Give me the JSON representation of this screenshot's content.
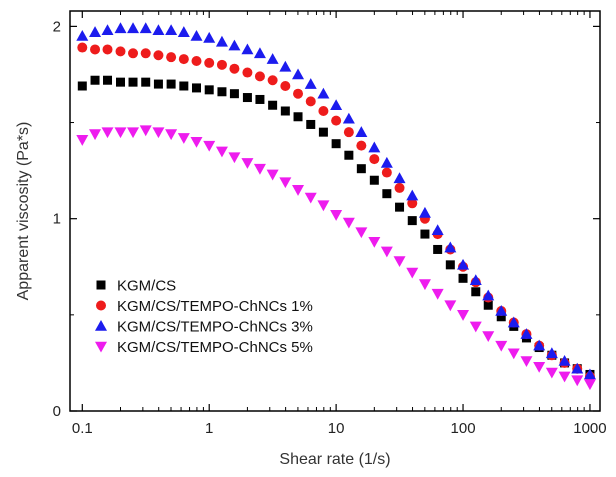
{
  "chart_data": {
    "type": "scatter",
    "xlabel": "Shear rate (1/s)",
    "ylabel": "Apparent viscosity (Pa*s)",
    "x_scale": "log",
    "xlim": [
      0.08,
      1200
    ],
    "ylim": [
      0,
      2.08
    ],
    "x_ticks": [
      0.1,
      1,
      10,
      100,
      1000
    ],
    "x_tick_labels": [
      "0.1",
      "1",
      "10",
      "100",
      "1000"
    ],
    "y_ticks": [
      0,
      1,
      2
    ],
    "y_tick_labels": [
      "0",
      "1",
      "2"
    ],
    "grid": false,
    "legend_position": "bottom-left",
    "x": [
      0.1,
      0.126,
      0.158,
      0.2,
      0.251,
      0.316,
      0.398,
      0.501,
      0.631,
      0.794,
      1.0,
      1.26,
      1.58,
      2.0,
      2.51,
      3.16,
      3.98,
      5.01,
      6.31,
      7.94,
      10.0,
      12.6,
      15.8,
      20.0,
      25.1,
      31.6,
      39.8,
      50.1,
      63.1,
      79.4,
      100,
      126,
      158,
      200,
      251,
      316,
      398,
      501,
      631,
      794,
      1000
    ],
    "series": [
      {
        "name": "KGM/CS",
        "marker": "square",
        "color": "#000000",
        "values": [
          1.69,
          1.72,
          1.72,
          1.71,
          1.71,
          1.71,
          1.7,
          1.7,
          1.69,
          1.68,
          1.67,
          1.66,
          1.65,
          1.63,
          1.62,
          1.59,
          1.56,
          1.53,
          1.49,
          1.45,
          1.39,
          1.33,
          1.26,
          1.2,
          1.13,
          1.06,
          0.99,
          0.92,
          0.84,
          0.76,
          0.69,
          0.62,
          0.55,
          0.49,
          0.44,
          0.38,
          0.33,
          0.29,
          0.25,
          0.22,
          0.19
        ]
      },
      {
        "name": "KGM/CS/TEMPO-ChNCs 1%",
        "marker": "circle",
        "color": "#ee1c1c",
        "values": [
          1.89,
          1.88,
          1.88,
          1.87,
          1.86,
          1.86,
          1.85,
          1.84,
          1.83,
          1.82,
          1.81,
          1.8,
          1.78,
          1.76,
          1.74,
          1.72,
          1.69,
          1.65,
          1.61,
          1.56,
          1.51,
          1.45,
          1.38,
          1.31,
          1.24,
          1.16,
          1.08,
          1.0,
          0.92,
          0.84,
          0.75,
          0.67,
          0.59,
          0.52,
          0.46,
          0.4,
          0.34,
          0.29,
          0.25,
          0.22,
          0.18
        ]
      },
      {
        "name": "KGM/CS/TEMPO-ChNCs 3%",
        "marker": "triangle-up",
        "color": "#1c1cee",
        "values": [
          1.95,
          1.97,
          1.98,
          1.99,
          1.99,
          1.99,
          1.98,
          1.98,
          1.97,
          1.95,
          1.94,
          1.92,
          1.9,
          1.88,
          1.86,
          1.83,
          1.79,
          1.75,
          1.7,
          1.65,
          1.59,
          1.52,
          1.45,
          1.37,
          1.29,
          1.21,
          1.12,
          1.03,
          0.94,
          0.85,
          0.76,
          0.68,
          0.6,
          0.52,
          0.46,
          0.4,
          0.34,
          0.3,
          0.26,
          0.22,
          0.19
        ]
      },
      {
        "name": "KGM/CS/TEMPO-ChNCs 5%",
        "marker": "triangle-down",
        "color": "#ee1cee",
        "values": [
          1.41,
          1.44,
          1.45,
          1.45,
          1.45,
          1.46,
          1.45,
          1.44,
          1.42,
          1.4,
          1.38,
          1.35,
          1.32,
          1.29,
          1.26,
          1.23,
          1.19,
          1.15,
          1.11,
          1.07,
          1.02,
          0.98,
          0.93,
          0.88,
          0.83,
          0.78,
          0.72,
          0.66,
          0.61,
          0.55,
          0.5,
          0.44,
          0.39,
          0.34,
          0.3,
          0.26,
          0.23,
          0.2,
          0.18,
          0.16,
          0.14
        ]
      }
    ]
  }
}
